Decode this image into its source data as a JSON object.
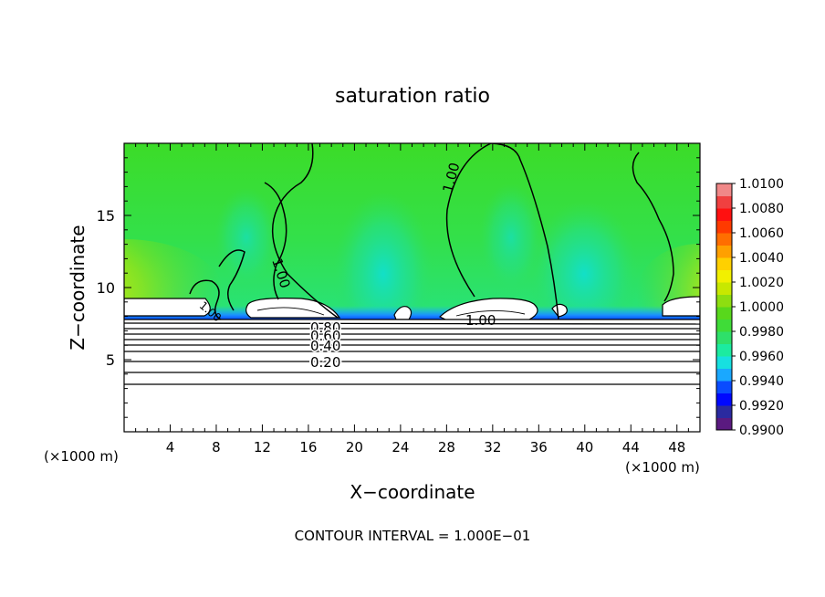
{
  "chart_data": {
    "type": "heatmap",
    "title": "saturation ratio",
    "xlabel": "X−coordinate",
    "ylabel": "Z−coordinate",
    "x_unit_left": "(×1000 m)",
    "x_unit_right": "(×1000 m)",
    "footer": "CONTOUR INTERVAL = 1.000E−01",
    "xlim": [
      0,
      50
    ],
    "ylim": [
      0,
      20
    ],
    "x_ticks": [
      4,
      8,
      12,
      16,
      20,
      24,
      28,
      32,
      36,
      40,
      44,
      48
    ],
    "y_ticks": [
      5,
      10,
      15
    ],
    "colorbar": {
      "min": 0.99,
      "max": 1.01,
      "ticks": [
        "1.0100",
        "1.0080",
        "1.0060",
        "1.0040",
        "1.0020",
        "1.0000",
        "0.9980",
        "0.9960",
        "0.9940",
        "0.9920",
        "0.9900"
      ],
      "colors": [
        "#5a1a80",
        "#2a2aa0",
        "#0008ff",
        "#0a4cff",
        "#1aa8ff",
        "#17e0e0",
        "#1ceba0",
        "#2ee06a",
        "#3fdc38",
        "#58d81c",
        "#8ede10",
        "#c8e800",
        "#f2f000",
        "#ffd000",
        "#ffa000",
        "#ff6e00",
        "#ff3a00",
        "#ff1010",
        "#f04040",
        "#f08888"
      ]
    },
    "contour_labels": [
      "1.00",
      "1.00",
      "1.00",
      "1.00",
      "0.80",
      "0.60",
      "0.40",
      "0.20"
    ]
  }
}
